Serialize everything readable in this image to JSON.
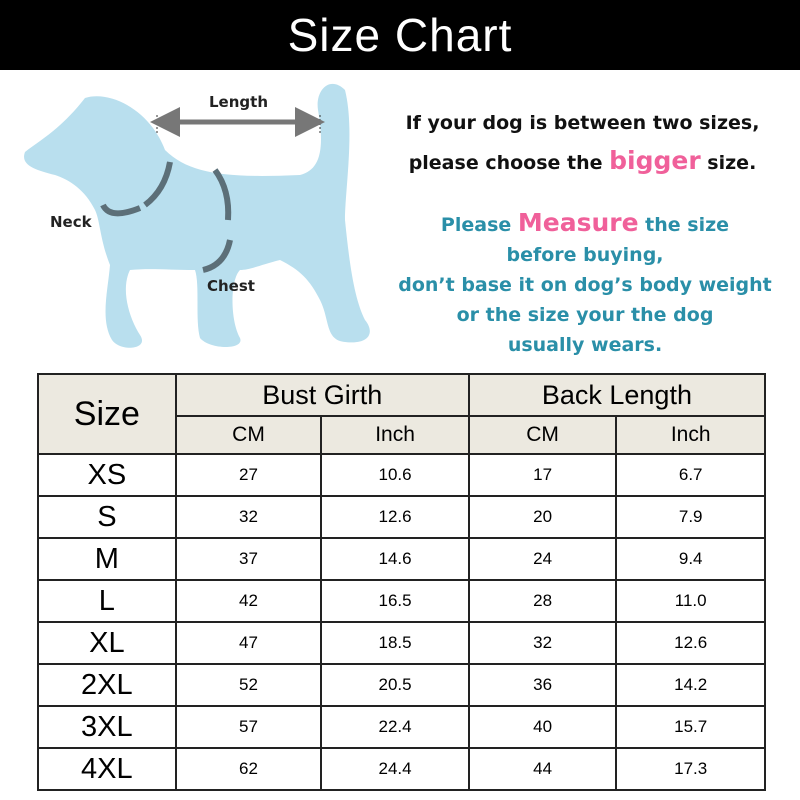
{
  "title": "Size Chart",
  "diagram": {
    "length": "Length",
    "neck": "Neck",
    "chest": "Chest",
    "dog_color": "#b9dfee"
  },
  "notes": {
    "line1": "If your dog is between two sizes,",
    "line2_a": "please choose the ",
    "line2_b": "bigger",
    "line2_c": " size.",
    "line3_a": "Please ",
    "line3_b": "Measure",
    "line3_c": " the size",
    "line4": "before buying,",
    "line5": "don’t base it on dog’s body weight",
    "line6": "or the size your the dog",
    "line7": "usually wears."
  },
  "table": {
    "size_header": "Size",
    "bust": "Bust Girth",
    "back": "Back Length",
    "sub": [
      "CM",
      "Inch",
      "CM",
      "Inch"
    ],
    "rows": [
      [
        "XS",
        "27",
        "10.6",
        "17",
        "6.7"
      ],
      [
        "S",
        "32",
        "12.6",
        "20",
        "7.9"
      ],
      [
        "M",
        "37",
        "14.6",
        "24",
        "9.4"
      ],
      [
        "L",
        "42",
        "16.5",
        "28",
        "11.0"
      ],
      [
        "XL",
        "47",
        "18.5",
        "32",
        "12.6"
      ],
      [
        "2XL",
        "52",
        "20.5",
        "36",
        "14.2"
      ],
      [
        "3XL",
        "57",
        "22.4",
        "40",
        "15.7"
      ],
      [
        "4XL",
        "62",
        "24.4",
        "44",
        "17.3"
      ]
    ]
  }
}
